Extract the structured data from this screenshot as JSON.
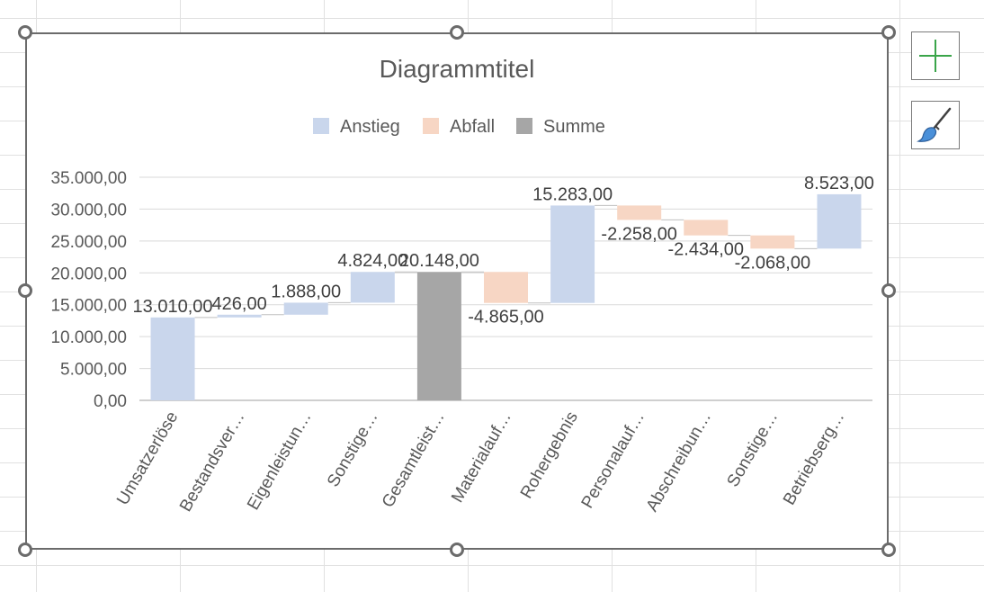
{
  "colors": {
    "increase": "#c9d6ec",
    "decrease": "#f7d6c4",
    "total": "#a6a6a6",
    "gridline": "#d9d9d9",
    "text": "#595959",
    "frame": "#6b6b6b",
    "plus_icon": "#3aa54a",
    "brush_icon": "#4a90d9"
  },
  "buttons": {
    "chart_elements_icon": "plus-icon",
    "chart_styles_icon": "brush-icon"
  },
  "chart_data": {
    "type": "waterfall",
    "title": "Diagrammtitel",
    "legend": {
      "position": "top",
      "entries": [
        {
          "name": "Anstieg",
          "kind": "increase"
        },
        {
          "name": "Abfall",
          "kind": "decrease"
        },
        {
          "name": "Summe",
          "kind": "total"
        }
      ]
    },
    "ylim": [
      0,
      35000
    ],
    "y_ticks": [
      0,
      5000,
      10000,
      15000,
      20000,
      25000,
      30000,
      35000
    ],
    "y_tick_labels": [
      "0,00",
      "5.000,00",
      "10.000,00",
      "15.000,00",
      "20.000,00",
      "25.000,00",
      "30.000,00",
      "35.000,00"
    ],
    "grid": true,
    "categories": [
      "Umsatzerlöse",
      "Bestandsver…",
      "Eigenleistun…",
      "Sonstige…",
      "Gesamtleist…",
      "Materialauf…",
      "Rohergebnis",
      "Personalauf…",
      "Abschreibun…",
      "Sonstige…",
      "Betriebserg…"
    ],
    "values": [
      13010,
      426,
      1888,
      4824,
      20148,
      -4865,
      15283,
      -2258,
      -2434,
      -2068,
      8523
    ],
    "kinds": [
      "increase",
      "increase",
      "increase",
      "increase",
      "total",
      "decrease",
      "increase",
      "decrease",
      "decrease",
      "decrease",
      "increase"
    ],
    "bar_bases": [
      0,
      13010,
      13436,
      15324,
      0,
      20148,
      15283,
      30566,
      28308,
      25874,
      23806
    ],
    "data_labels": [
      "13.010,00",
      "426,00",
      "1.888,00",
      "4.824,00",
      "20.148,00",
      "-4.865,00",
      "15.283,00",
      "-2.258,00",
      "-2.434,00",
      "-2.068,00",
      "8.523,00"
    ]
  }
}
